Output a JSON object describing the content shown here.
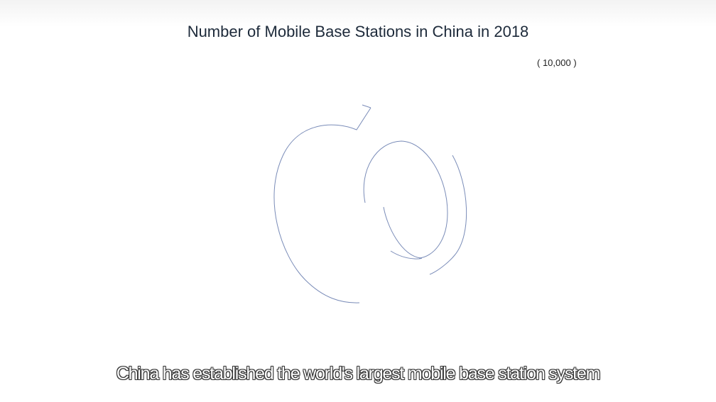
{
  "chart": {
    "title": "Number of Mobile Base Stations in China in 2018",
    "unit": "( 10,000 )",
    "line_color": "#7a8cb8"
  },
  "subtitle": "China has established the world's largest mobile base station system"
}
